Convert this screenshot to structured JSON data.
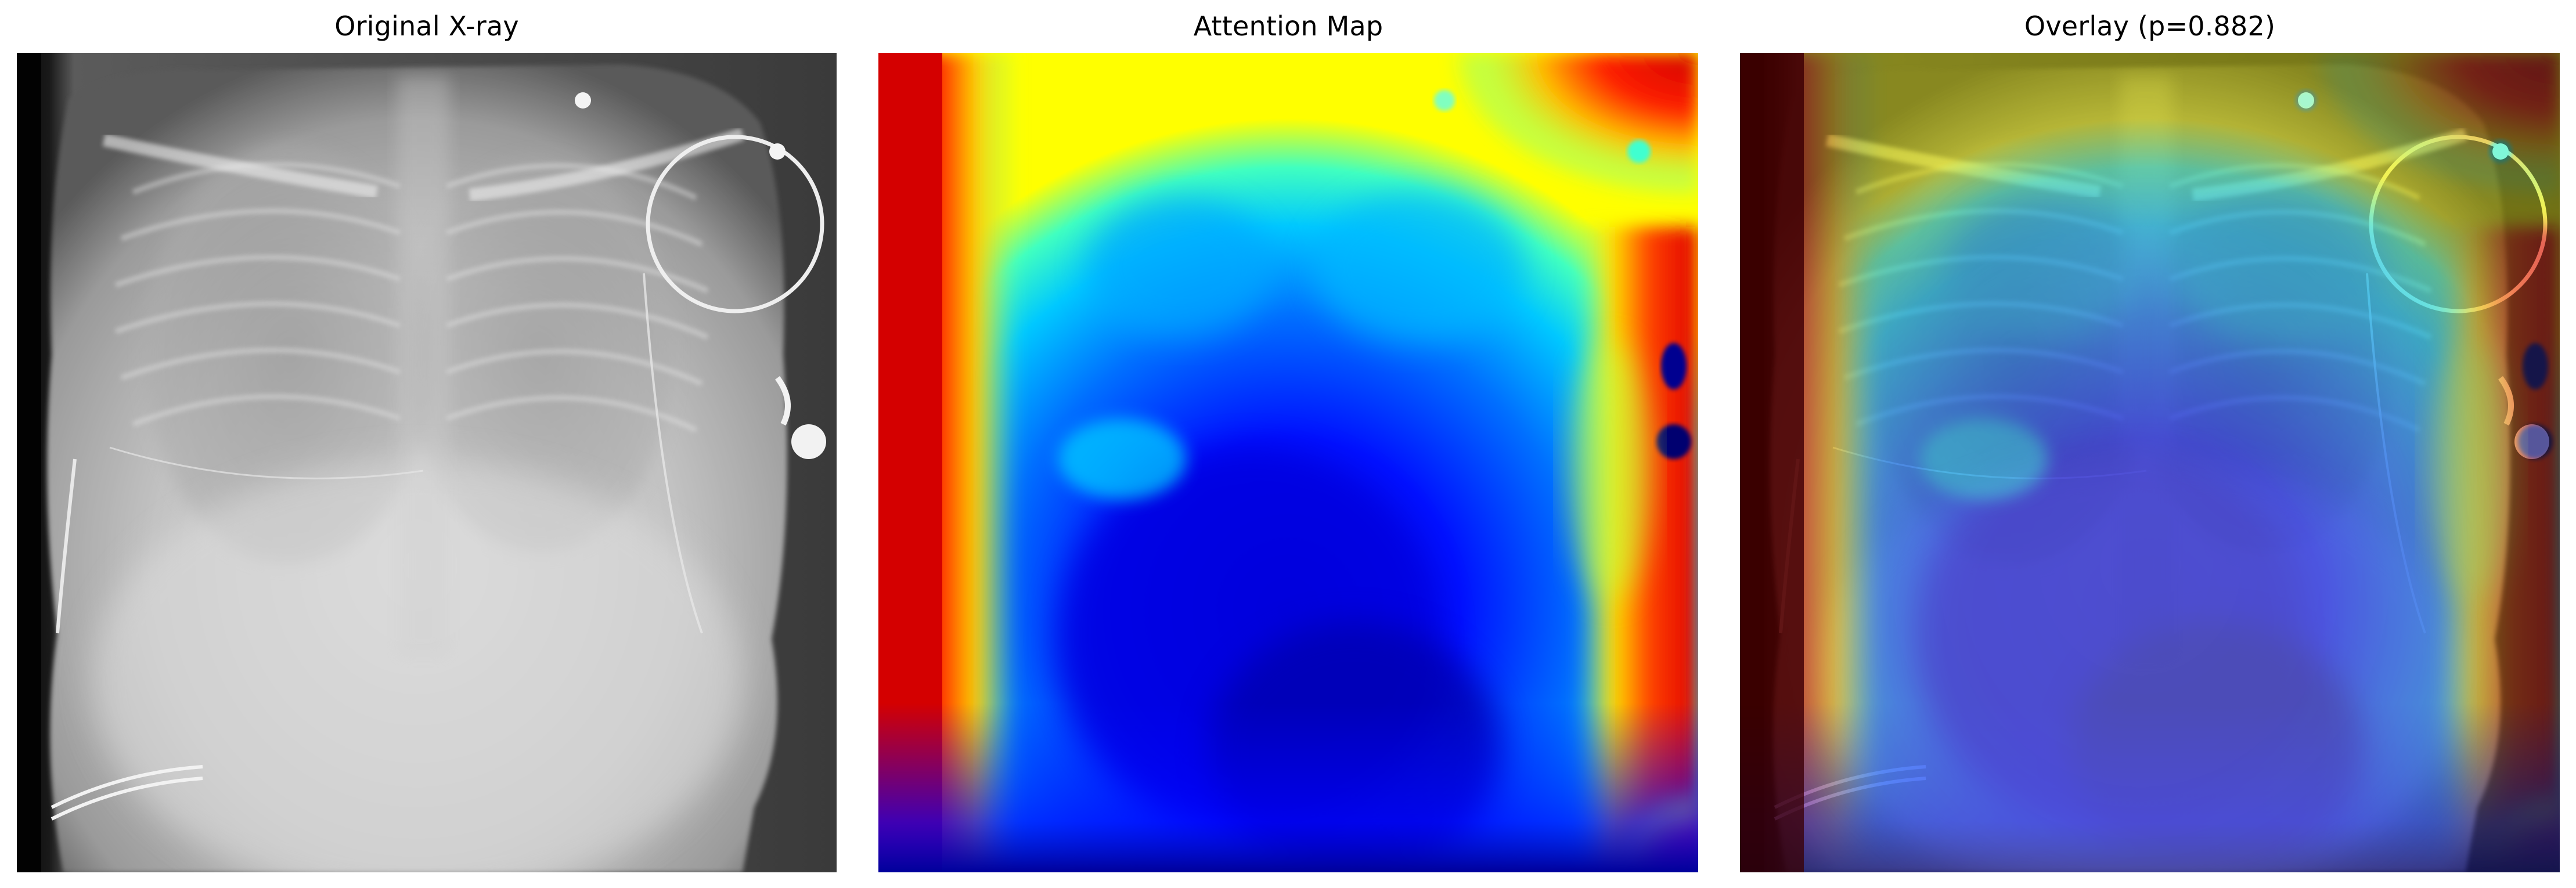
{
  "figure": {
    "panels": [
      {
        "id": "original",
        "title": "Original X-ray",
        "content": "grayscale chest radiograph"
      },
      {
        "id": "attention",
        "title": "Attention Map",
        "content": "jet colormap heatmap"
      },
      {
        "id": "overlay",
        "title": "Overlay (p=0.882)",
        "content": "heatmap blended over radiograph"
      }
    ],
    "colormap": "jet",
    "colors": {
      "background": "#ffffff",
      "title_text": "#000000",
      "jet_low": "#00008f",
      "jet_mid": "#00c8ff",
      "jet_high": "#d40000"
    }
  }
}
